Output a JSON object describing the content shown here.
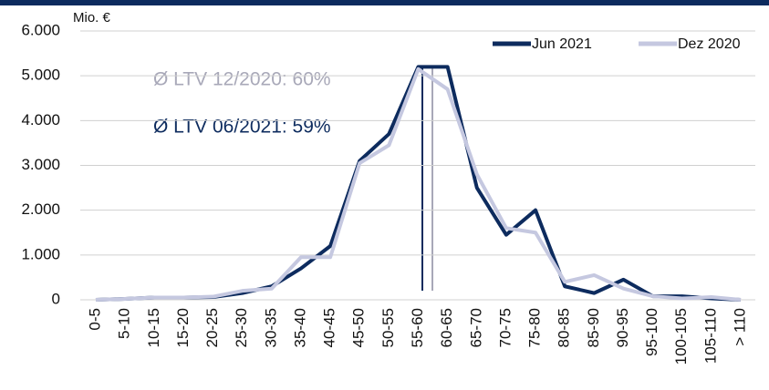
{
  "chart_data": {
    "type": "line",
    "unit_label": "Mio. €",
    "annotations": [
      "Ø LTV 12/2020: 60%",
      "Ø LTV 06/2021: 59%"
    ],
    "categories": [
      "0-5",
      "5-10",
      "10-15",
      "15-20",
      "20-25",
      "25-30",
      "30-35",
      "35-40",
      "40-45",
      "45-50",
      "50-55",
      "55-60",
      "60-65",
      "65-70",
      "70-75",
      "75-80",
      "80-85",
      "85-90",
      "90-95",
      "95-100",
      "100-105",
      "105-110",
      "> 110"
    ],
    "series": [
      {
        "name": "Jun 2021",
        "color": "#0d2b5e",
        "values": [
          0,
          20,
          50,
          50,
          60,
          150,
          300,
          700,
          1200,
          3100,
          3700,
          5200,
          5200,
          2500,
          1450,
          2000,
          300,
          150,
          450,
          80,
          80,
          30,
          0
        ]
      },
      {
        "name": "Dez 2020",
        "color": "#c5c8e0",
        "values": [
          0,
          20,
          50,
          50,
          70,
          200,
          250,
          950,
          950,
          3050,
          3450,
          5150,
          4700,
          2800,
          1600,
          1500,
          400,
          550,
          250,
          80,
          30,
          60,
          0
        ]
      }
    ],
    "ylim": [
      0,
      6000
    ],
    "yticks": [
      0,
      {
        "value": 1000,
        "label": "1.000"
      },
      {
        "value": 2000,
        "label": "2.000"
      },
      {
        "value": 3000,
        "label": "3.000"
      },
      {
        "value": 4000,
        "label": "4.000"
      },
      {
        "value": 5000,
        "label": "5.000"
      },
      {
        "value": 6000,
        "label": "6.000"
      }
    ],
    "grid": true,
    "legend": "top-right"
  }
}
